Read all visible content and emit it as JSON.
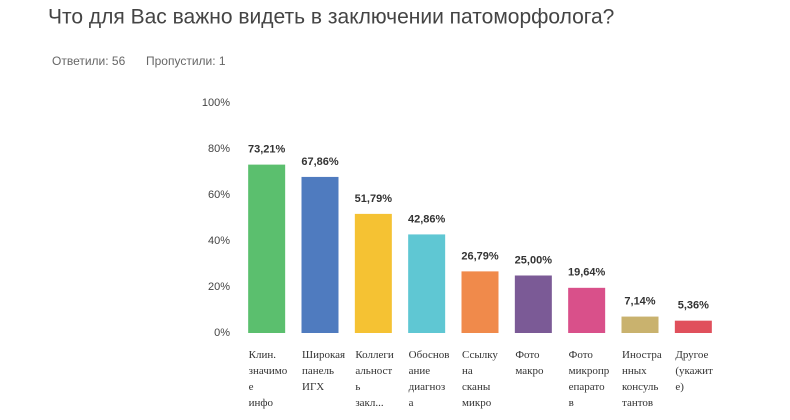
{
  "chart_data": {
    "type": "bar",
    "title": "Что для Вас важно видеть в заключении патоморфолога?",
    "answered": "Ответили: 56",
    "skipped": "Пропустили: 1",
    "categories": [
      [
        "Клин.",
        "значимо",
        "е",
        "инфо"
      ],
      [
        "Широкая",
        "панель",
        "ИГХ"
      ],
      [
        "Коллеги",
        "альност",
        "ь",
        "закл..."
      ],
      [
        "Обоснов",
        "ание",
        "диагноз",
        "а"
      ],
      [
        "Ссылку",
        "на",
        "сканы",
        "микро"
      ],
      [
        "Фото",
        "макро"
      ],
      [
        "Фото",
        "микропр",
        "епарато",
        "в"
      ],
      [
        "Иностра",
        "нных",
        "консуль",
        "тантов"
      ],
      [
        "Другое",
        "(укажит",
        "е)"
      ]
    ],
    "values": [
      73.21,
      67.86,
      51.79,
      42.86,
      26.79,
      25.0,
      19.64,
      7.14,
      5.36
    ],
    "value_labels": [
      "73,21%",
      "67,86%",
      "51,79%",
      "42,86%",
      "26,79%",
      "25,00%",
      "19,64%",
      "7,14%",
      "5,36%"
    ],
    "colors": [
      "#5bbf6e",
      "#4f7bbf",
      "#f5c233",
      "#5fc7d3",
      "#f08a4b",
      "#7b5a96",
      "#d9508a",
      "#c9b26e",
      "#e0505c"
    ],
    "ylim": [
      0,
      100
    ],
    "yticks": [
      {
        "value": 0,
        "label": "0%"
      },
      {
        "value": 20,
        "label": "20%"
      },
      {
        "value": 40,
        "label": "40%"
      },
      {
        "value": 60,
        "label": "60%"
      },
      {
        "value": 80,
        "label": "80%"
      },
      {
        "value": 100,
        "label": "100%"
      }
    ]
  }
}
